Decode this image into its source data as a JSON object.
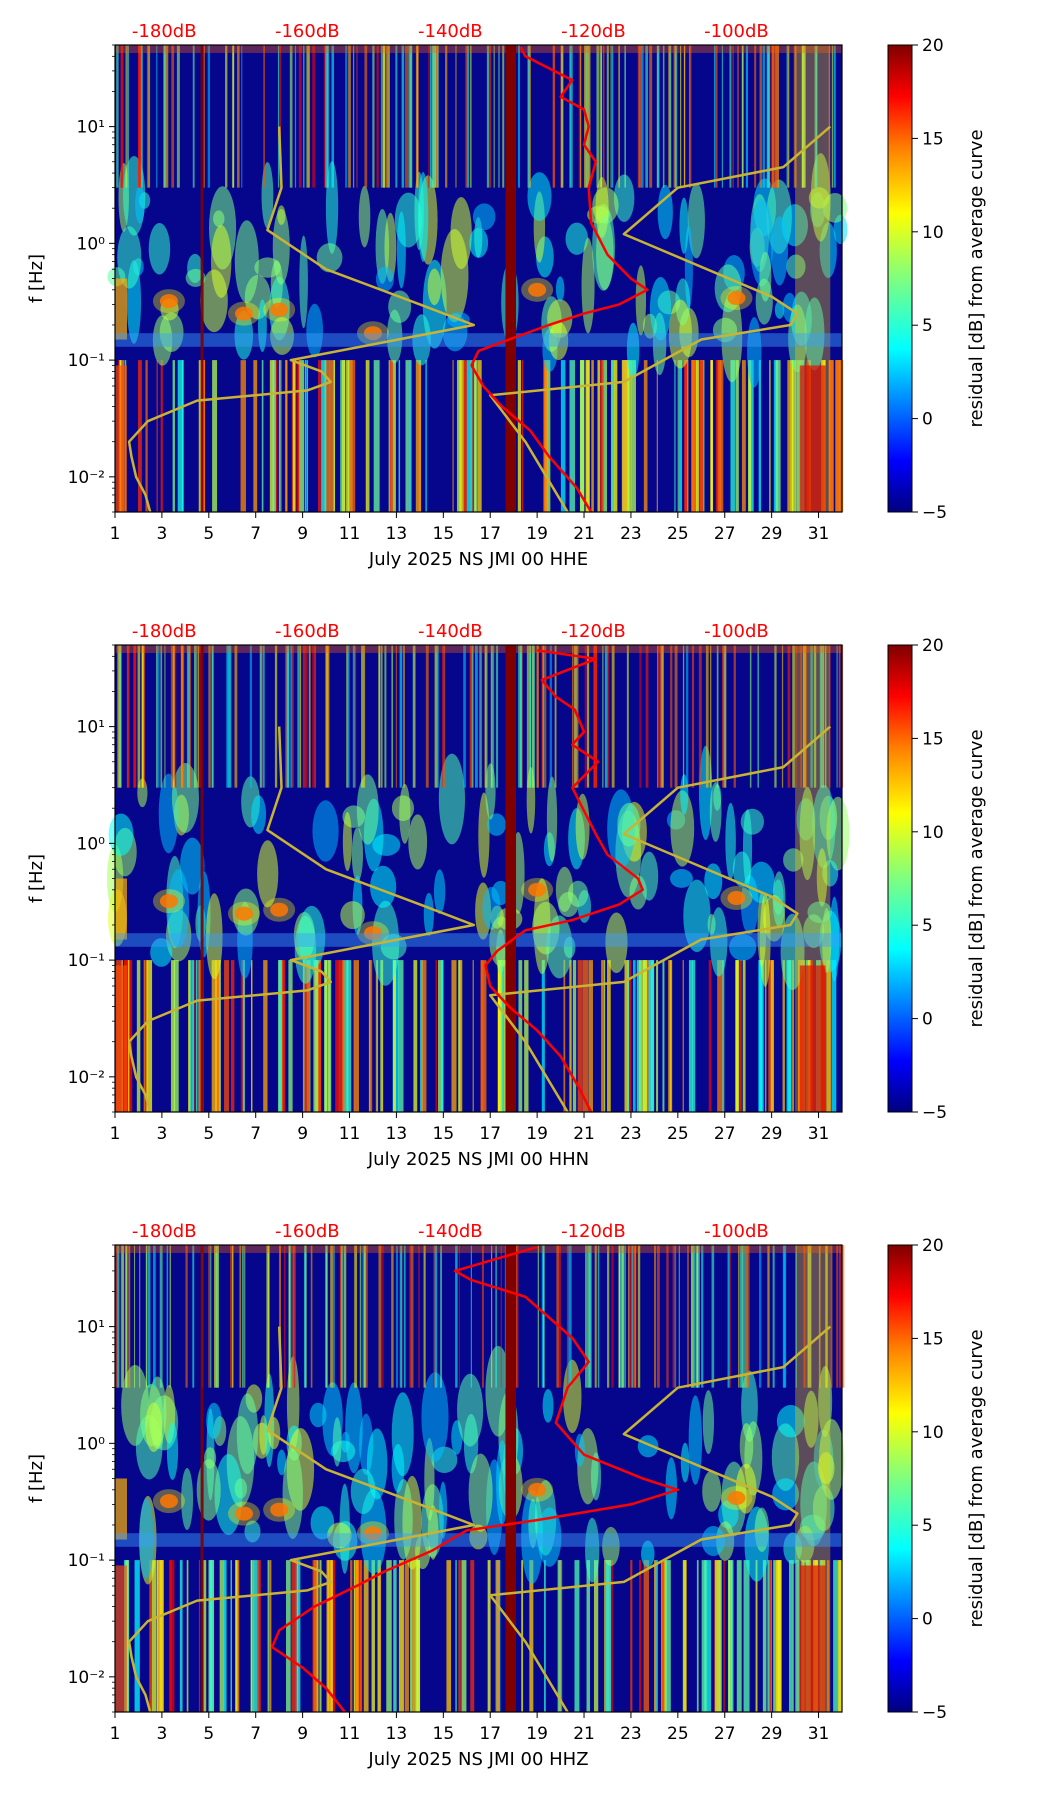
{
  "figure_title": "",
  "colorbar": {
    "label": "residual [dB] from average curve",
    "min": -5,
    "max": 20,
    "ticks": [
      "20",
      "15",
      "10",
      "5",
      "0",
      "−5"
    ],
    "colormap": [
      "#00007f",
      "#0000ff",
      "#007fff",
      "#00ffff",
      "#7fff7f",
      "#ffff00",
      "#ff7f00",
      "#ff0000",
      "#7f0000"
    ]
  },
  "x_tick_labels": [
    "1",
    "3",
    "5",
    "7",
    "9",
    "11",
    "13",
    "15",
    "17",
    "19",
    "21",
    "23",
    "25",
    "27",
    "29",
    "31"
  ],
  "y_tick_labels": [
    "10⁻²",
    "10⁻¹",
    "10⁰",
    "10¹"
  ],
  "ylabel": "f [Hz]",
  "db_labels": [
    "-180dB",
    "-160dB",
    "-140dB",
    "-120dB",
    "-100dB"
  ],
  "chart_data": [
    {
      "type": "heatmap",
      "title": "",
      "xlabel": "July 2025 NS JMI 00 HHE",
      "ylabel": "f [Hz]",
      "xlim": [
        1,
        32
      ],
      "ylim": [
        0.005,
        50
      ],
      "yscale": "log",
      "power_curve_color": "#ff0000",
      "power_curve": [
        [
          48,
          18.3
        ],
        [
          40,
          18.5
        ],
        [
          25,
          20.5
        ],
        [
          18,
          20
        ],
        [
          14,
          21
        ],
        [
          10,
          21.2
        ],
        [
          7,
          21
        ],
        [
          5,
          21.5
        ],
        [
          3,
          21.2
        ],
        [
          1.5,
          21.3
        ],
        [
          0.8,
          22
        ],
        [
          0.5,
          23
        ],
        [
          0.4,
          23.7
        ],
        [
          0.3,
          22.5
        ],
        [
          0.25,
          21
        ],
        [
          0.2,
          19.5
        ],
        [
          0.15,
          17.8
        ],
        [
          0.12,
          16.5
        ],
        [
          0.09,
          16.2
        ],
        [
          0.06,
          16.7
        ],
        [
          0.04,
          17.5
        ],
        [
          0.025,
          18.7
        ],
        [
          0.015,
          19.5
        ],
        [
          0.008,
          20.7
        ],
        [
          0.005,
          21.3
        ]
      ],
      "model_curve_color": "#c8b432",
      "model_curve": [
        [
          0.005,
          2.5
        ],
        [
          0.007,
          2.3
        ],
        [
          0.01,
          1.9
        ],
        [
          0.015,
          1.7
        ],
        [
          0.02,
          1.6
        ],
        [
          0.03,
          2.4
        ],
        [
          0.045,
          4.5
        ],
        [
          0.055,
          9.2
        ],
        [
          0.065,
          10.2
        ],
        [
          0.08,
          9.8
        ],
        [
          0.1,
          8.5
        ],
        [
          0.2,
          16.3
        ],
        [
          0.3,
          14
        ],
        [
          0.6,
          10
        ],
        [
          1.3,
          7.5
        ],
        [
          3,
          8.1
        ],
        [
          10,
          8
        ]
      ],
      "model_curve_2": [
        [
          0.005,
          20.3
        ],
        [
          0.02,
          18.5
        ],
        [
          0.05,
          17
        ],
        [
          0.065,
          22.7
        ],
        [
          0.15,
          26
        ],
        [
          0.2,
          29.8
        ],
        [
          0.25,
          30.1
        ],
        [
          0.35,
          29
        ],
        [
          1.2,
          22.7
        ],
        [
          3,
          25
        ],
        [
          4.5,
          29.5
        ],
        [
          10,
          31.5
        ]
      ]
    },
    {
      "type": "heatmap",
      "title": "",
      "xlabel": "July 2025 NS JMI 00 HHN",
      "ylabel": "f [Hz]",
      "xlim": [
        1,
        32
      ],
      "ylim": [
        0.005,
        50
      ],
      "yscale": "log",
      "power_curve_color": "#ff0000",
      "power_curve": [
        [
          45,
          19
        ],
        [
          38,
          21.5
        ],
        [
          25,
          19.2
        ],
        [
          18,
          19.8
        ],
        [
          14,
          20.6
        ],
        [
          9,
          21
        ],
        [
          7,
          20.5
        ],
        [
          5,
          21.6
        ],
        [
          3,
          20.5
        ],
        [
          1.2,
          21.5
        ],
        [
          0.8,
          22
        ],
        [
          0.5,
          23.3
        ],
        [
          0.4,
          23.5
        ],
        [
          0.3,
          22.5
        ],
        [
          0.22,
          20.5
        ],
        [
          0.18,
          18.5
        ],
        [
          0.12,
          17.3
        ],
        [
          0.09,
          16.8
        ],
        [
          0.06,
          17
        ],
        [
          0.04,
          17.8
        ],
        [
          0.025,
          19
        ],
        [
          0.015,
          20
        ],
        [
          0.008,
          20.8
        ],
        [
          0.005,
          21.3
        ]
      ],
      "model_curve_color": "#c8b432",
      "model_curve": [
        [
          0.005,
          2.5
        ],
        [
          0.007,
          2.3
        ],
        [
          0.01,
          1.9
        ],
        [
          0.015,
          1.7
        ],
        [
          0.02,
          1.6
        ],
        [
          0.03,
          2.4
        ],
        [
          0.045,
          4.5
        ],
        [
          0.055,
          9.2
        ],
        [
          0.065,
          10.2
        ],
        [
          0.08,
          9.8
        ],
        [
          0.1,
          8.5
        ],
        [
          0.2,
          16.3
        ],
        [
          0.3,
          14
        ],
        [
          0.6,
          10
        ],
        [
          1.3,
          7.5
        ],
        [
          3,
          8.1
        ],
        [
          10,
          8
        ]
      ],
      "model_curve_2": [
        [
          0.005,
          20.3
        ],
        [
          0.02,
          18.5
        ],
        [
          0.05,
          17
        ],
        [
          0.065,
          22.7
        ],
        [
          0.15,
          26
        ],
        [
          0.2,
          29.8
        ],
        [
          0.25,
          30.1
        ],
        [
          0.35,
          29
        ],
        [
          1.2,
          22.7
        ],
        [
          3,
          25
        ],
        [
          4.5,
          29.5
        ],
        [
          10,
          31.5
        ]
      ]
    },
    {
      "type": "heatmap",
      "title": "",
      "xlabel": "July 2025 NS JMI 00 HHZ",
      "ylabel": "f [Hz]",
      "xlim": [
        1,
        32
      ],
      "ylim": [
        0.005,
        50
      ],
      "yscale": "log",
      "power_curve_color": "#ff0000",
      "power_curve": [
        [
          48,
          19
        ],
        [
          42,
          18
        ],
        [
          30,
          15.5
        ],
        [
          25,
          16.2
        ],
        [
          18,
          18.5
        ],
        [
          12,
          19.5
        ],
        [
          8,
          20.5
        ],
        [
          5,
          21.2
        ],
        [
          3,
          20.3
        ],
        [
          1.5,
          19.8
        ],
        [
          0.8,
          21
        ],
        [
          0.5,
          23.5
        ],
        [
          0.4,
          25
        ],
        [
          0.3,
          23
        ],
        [
          0.22,
          19
        ],
        [
          0.18,
          16
        ],
        [
          0.12,
          14.5
        ],
        [
          0.08,
          12.5
        ],
        [
          0.06,
          11.3
        ],
        [
          0.04,
          9.5
        ],
        [
          0.025,
          8
        ],
        [
          0.018,
          7.7
        ],
        [
          0.012,
          9
        ],
        [
          0.008,
          10
        ],
        [
          0.005,
          10.8
        ]
      ],
      "model_curve_color": "#c8b432",
      "model_curve": [
        [
          0.005,
          2.5
        ],
        [
          0.007,
          2.3
        ],
        [
          0.01,
          1.9
        ],
        [
          0.015,
          1.7
        ],
        [
          0.02,
          1.6
        ],
        [
          0.03,
          2.4
        ],
        [
          0.045,
          4.5
        ],
        [
          0.055,
          9.2
        ],
        [
          0.065,
          10.2
        ],
        [
          0.08,
          9.8
        ],
        [
          0.1,
          8.5
        ],
        [
          0.2,
          16.3
        ],
        [
          0.3,
          14
        ],
        [
          0.6,
          10
        ],
        [
          1.3,
          7.5
        ],
        [
          3,
          8.1
        ],
        [
          10,
          8
        ]
      ],
      "model_curve_2": [
        [
          0.005,
          20.3
        ],
        [
          0.02,
          18.5
        ],
        [
          0.05,
          17
        ],
        [
          0.065,
          22.7
        ],
        [
          0.15,
          26
        ],
        [
          0.2,
          29.8
        ],
        [
          0.25,
          30.1
        ],
        [
          0.35,
          29
        ],
        [
          1.2,
          22.7
        ],
        [
          3,
          25
        ],
        [
          4.5,
          29.5
        ],
        [
          10,
          31.5
        ]
      ]
    }
  ]
}
